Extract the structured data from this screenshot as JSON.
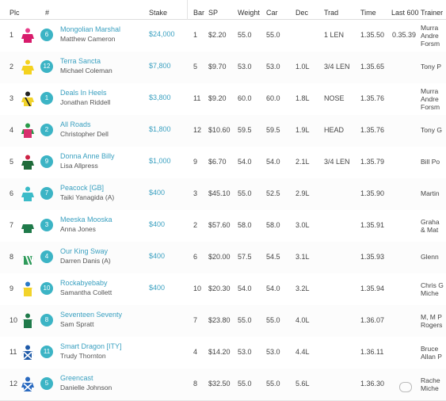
{
  "headers": {
    "plc": "Plc",
    "num": "#",
    "stake": "Stake",
    "bar": "Bar",
    "sp": "SP",
    "weight": "Weight",
    "car": "Car",
    "dec": "Dec",
    "trad": "Trad",
    "time": "Time",
    "last600": "Last 600",
    "trainer": "Trainer"
  },
  "rows": [
    {
      "plc": "1",
      "num": "6",
      "horse": "Mongolian Marshal",
      "jockey": "Matthew Cameron",
      "stake": "$24,000",
      "bar": "1",
      "sp": "$2.20",
      "weight": "55.0",
      "car": "55.0",
      "dec": "",
      "trad": "1 LEN",
      "time": "1.35.50",
      "last600": "0.35.39",
      "trainer": [
        "Murra",
        "Andre",
        "Forsm"
      ],
      "silk": {
        "body": "#d81b6b",
        "cap": "#e83d8a",
        "sleeve": "#d81b6b",
        "pattern": "solid"
      }
    },
    {
      "plc": "2",
      "num": "12",
      "horse": "Terra Sancta",
      "jockey": "Michael Coleman",
      "stake": "$7,800",
      "bar": "5",
      "sp": "$9.70",
      "weight": "53.0",
      "car": "53.0",
      "dec": "1.0L",
      "trad": "3/4 LEN",
      "time": "1.35.65",
      "last600": "",
      "trainer": [
        "Tony P"
      ],
      "silk": {
        "body": "#f4d21f",
        "cap": "#f4d21f",
        "sleeve": "#f4d21f",
        "pattern": "solid"
      }
    },
    {
      "plc": "3",
      "num": "1",
      "horse": "Deals In Heels",
      "jockey": "Jonathan Riddell",
      "stake": "$3,800",
      "bar": "11",
      "sp": "$9.20",
      "weight": "60.0",
      "car": "60.0",
      "dec": "1.8L",
      "trad": "NOSE",
      "time": "1.35.76",
      "last600": "",
      "trainer": [
        "Murra",
        "Andre",
        "Forsm"
      ],
      "silk": {
        "body": "#f2d32a",
        "cap": "#222222",
        "sleeve": "#f2d32a",
        "pattern": "sash"
      }
    },
    {
      "plc": "4",
      "num": "2",
      "horse": "All Roads",
      "jockey": "Christopher Dell",
      "stake": "$1,800",
      "bar": "12",
      "sp": "$10.60",
      "weight": "59.5",
      "car": "59.5",
      "dec": "1.9L",
      "trad": "HEAD",
      "time": "1.35.76",
      "last600": "",
      "trainer": [
        "Tony G"
      ],
      "silk": {
        "body": "#d8306e",
        "cap": "#2a9a4a",
        "sleeve": "#2a9a4a",
        "pattern": "solid"
      }
    },
    {
      "plc": "5",
      "num": "9",
      "horse": "Donna Anne Billy",
      "jockey": "Lisa Allpress",
      "stake": "$1,000",
      "bar": "9",
      "sp": "$6.70",
      "weight": "54.0",
      "car": "54.0",
      "dec": "2.1L",
      "trad": "3/4 LEN",
      "time": "1.35.79",
      "last600": "",
      "trainer": [
        "Bill Po"
      ],
      "silk": {
        "body": "#1f6b3a",
        "cap": "#cc2244",
        "sleeve": "#1f6b3a",
        "pattern": "solid"
      }
    },
    {
      "plc": "6",
      "num": "7",
      "horse": "Peacock [GB]",
      "jockey": "Taiki Yanagida (A)",
      "stake": "$400",
      "bar": "3",
      "sp": "$45.10",
      "weight": "55.0",
      "car": "52.5",
      "dec": "2.9L",
      "trad": "",
      "time": "1.35.90",
      "last600": "",
      "trainer": [
        "Martin"
      ],
      "silk": {
        "body": "#3bbbc8",
        "cap": "#3bbbc8",
        "sleeve": "#3bbbc8",
        "pattern": "solid"
      }
    },
    {
      "plc": "7",
      "num": "3",
      "horse": "Meeska Mooska",
      "jockey": "Anna Jones",
      "stake": "$400",
      "bar": "2",
      "sp": "$57.60",
      "weight": "58.0",
      "car": "58.0",
      "dec": "3.0L",
      "trad": "",
      "time": "1.35.91",
      "last600": "",
      "trainer": [
        "Graha",
        "& Mat"
      ],
      "silk": {
        "body": "#1f7a4a",
        "cap": "#ffffff",
        "sleeve": "#1f7a4a",
        "pattern": "solid"
      }
    },
    {
      "plc": "8",
      "num": "4",
      "horse": "Our King Sway",
      "jockey": "Darren Danis (A)",
      "stake": "$400",
      "bar": "6",
      "sp": "$20.00",
      "weight": "57.5",
      "car": "54.5",
      "dec": "3.1L",
      "trad": "",
      "time": "1.35.93",
      "last600": "",
      "trainer": [
        "Glenn"
      ],
      "silk": {
        "body": "#2e9a5a",
        "cap": "#ffffff",
        "sleeve": "#ffffff",
        "pattern": "stripes"
      }
    },
    {
      "plc": "9",
      "num": "10",
      "horse": "Rockabyebaby",
      "jockey": "Samantha Collett",
      "stake": "$400",
      "bar": "10",
      "sp": "$20.30",
      "weight": "54.0",
      "car": "54.0",
      "dec": "3.2L",
      "trad": "",
      "time": "1.35.94",
      "last600": "",
      "trainer": [
        "Chris G",
        "Miche"
      ],
      "silk": {
        "body": "#f2d32a",
        "cap": "#2a7ac8",
        "sleeve": "#ffffff",
        "pattern": "solid"
      }
    },
    {
      "plc": "10",
      "num": "8",
      "horse": "Seventeen Seventy",
      "jockey": "Sam Spratt",
      "stake": "",
      "bar": "7",
      "sp": "$23.80",
      "weight": "55.0",
      "car": "55.0",
      "dec": "4.0L",
      "trad": "",
      "time": "1.36.07",
      "last600": "",
      "trainer": [
        "M, M P",
        "Rogers"
      ],
      "silk": {
        "body": "#1f7a4a",
        "cap": "#1f7a4a",
        "sleeve": "#ffffff",
        "pattern": "solid"
      }
    },
    {
      "plc": "11",
      "num": "11",
      "horse": "Smart Dragon [ITY]",
      "jockey": "Trudy Thornton",
      "stake": "",
      "bar": "4",
      "sp": "$14.20",
      "weight": "53.0",
      "car": "53.0",
      "dec": "4.4L",
      "trad": "",
      "time": "1.36.11",
      "last600": "",
      "trainer": [
        "Bruce",
        "Allan P"
      ],
      "silk": {
        "body": "#1f5aa8",
        "cap": "#1f5aa8",
        "sleeve": "#ffffff",
        "pattern": "cross"
      }
    },
    {
      "plc": "12",
      "num": "5",
      "horse": "Greencast",
      "jockey": "Danielle Johnson",
      "stake": "",
      "bar": "8",
      "sp": "$32.50",
      "weight": "55.0",
      "car": "55.0",
      "dec": "5.6L",
      "trad": "",
      "time": "1.36.30",
      "last600": "",
      "trainer": [
        "Rache",
        "Miche"
      ],
      "silk": {
        "body": "#2a6ac0",
        "cap": "#2a6ac0",
        "sleeve": "#2a6ac0",
        "pattern": "cross"
      }
    }
  ]
}
